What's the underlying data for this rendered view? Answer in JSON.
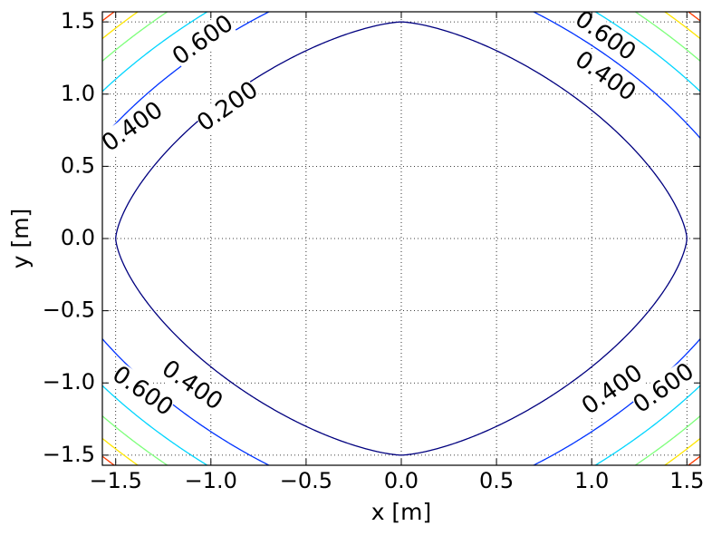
{
  "chart_data": {
    "type": "contour",
    "xlabel": "x [m]",
    "ylabel": "y [m]",
    "xlim": [
      -1.57,
      1.57
    ],
    "ylim": [
      -1.57,
      1.57
    ],
    "xticks": [
      {
        "value": -1.5,
        "label": "−1.5"
      },
      {
        "value": -1.0,
        "label": "−1.0"
      },
      {
        "value": -0.5,
        "label": "−0.5"
      },
      {
        "value": 0,
        "label": "0.0"
      },
      0.5,
      {
        "value": 1.0,
        "label": "1.0"
      },
      1.5
    ],
    "yticks": [
      {
        "value": -1.5,
        "label": "−1.5"
      },
      {
        "value": -1.0,
        "label": "−1.0"
      },
      {
        "value": -0.5,
        "label": "−0.5"
      },
      {
        "value": 0,
        "label": "0.0"
      },
      0.5,
      {
        "value": 1.0,
        "label": "1.0"
      },
      1.5
    ],
    "grid": true,
    "levels": [
      {
        "value": 0.2,
        "label": "0.200"
      },
      {
        "value": 0.4,
        "label": "0.400"
      },
      {
        "value": 0.6,
        "label": "0.600"
      },
      0.8,
      1.0,
      1.2
    ],
    "colors": [
      "#00007f",
      "#0033ff",
      "#00d5ff",
      "#7dff7a",
      "#ffe500",
      "#ff3b00"
    ]
  }
}
